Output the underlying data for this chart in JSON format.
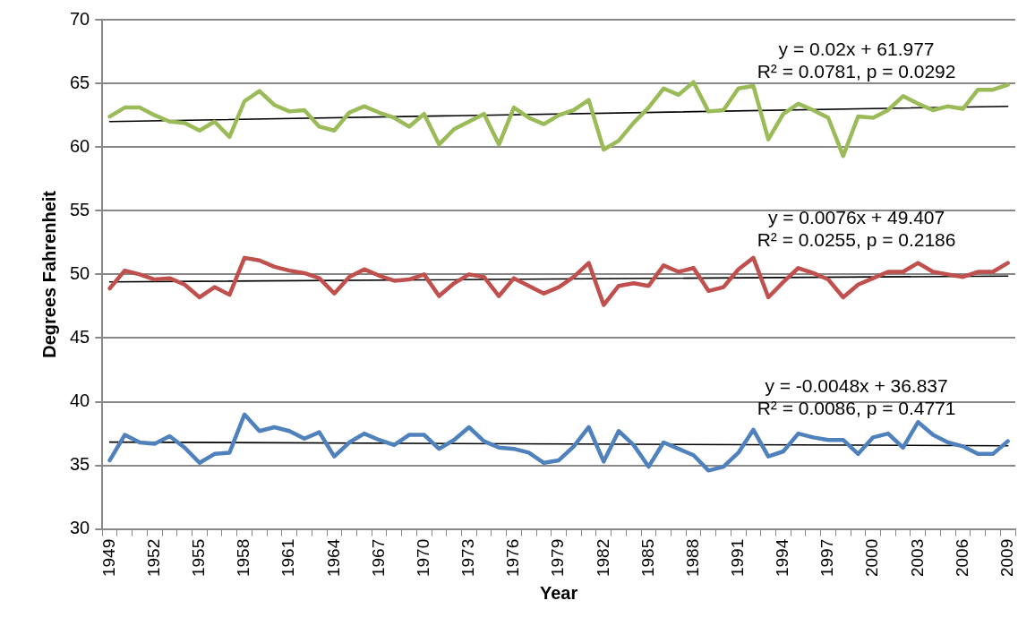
{
  "chart_data": {
    "type": "line",
    "xlabel": "Year",
    "ylabel": "Degrees Fahrenheit",
    "categories": [
      "1949",
      null,
      null,
      "1952",
      null,
      null,
      "1955",
      null,
      null,
      "1958",
      null,
      null,
      "1961",
      null,
      null,
      "1964",
      null,
      null,
      "1967",
      null,
      null,
      "1970",
      null,
      null,
      "1973",
      null,
      null,
      "1976",
      null,
      null,
      "1979",
      null,
      null,
      "1982",
      null,
      null,
      "1985",
      null,
      null,
      "1988",
      null,
      null,
      "1991",
      null,
      null,
      "1994",
      null,
      null,
      "1997",
      null,
      null,
      "2000",
      null,
      null,
      "2003",
      null,
      null,
      "2006",
      null,
      null,
      "2009"
    ],
    "series": [
      {
        "color": "#9bbb59",
        "values": [
          62.4,
          63.1,
          63.1,
          62.5,
          62.0,
          61.9,
          61.3,
          62.0,
          60.8,
          63.6,
          64.4,
          63.3,
          62.8,
          62.9,
          61.6,
          61.3,
          62.7,
          63.2,
          62.7,
          62.3,
          61.6,
          62.6,
          60.2,
          61.4,
          62.0,
          62.6,
          60.2,
          63.1,
          62.3,
          61.8,
          62.5,
          62.9,
          63.7,
          59.8,
          60.5,
          61.9,
          63.1,
          64.6,
          64.1,
          65.1,
          62.8,
          62.9,
          64.6,
          64.8,
          60.6,
          62.6,
          63.4,
          62.9,
          62.3,
          59.3,
          62.4,
          62.3,
          62.9,
          64.0,
          63.4,
          62.9,
          63.2,
          63.0,
          64.5,
          64.5,
          64.9
        ]
      },
      {
        "color": "#c0504d",
        "values": [
          48.9,
          50.3,
          50.0,
          49.6,
          49.7,
          49.2,
          48.2,
          49.0,
          48.4,
          51.3,
          51.1,
          50.6,
          50.3,
          50.1,
          49.7,
          48.5,
          49.8,
          50.4,
          49.9,
          49.5,
          49.6,
          50.0,
          48.3,
          49.3,
          50.0,
          49.8,
          48.3,
          49.7,
          49.1,
          48.5,
          49.0,
          49.8,
          50.9,
          47.6,
          49.1,
          49.3,
          49.1,
          50.7,
          50.2,
          50.5,
          48.7,
          49.0,
          50.4,
          51.3,
          48.2,
          49.4,
          50.5,
          50.1,
          49.6,
          48.2,
          49.2,
          49.7,
          50.2,
          50.2,
          50.9,
          50.2,
          50.0,
          49.8,
          50.2,
          50.2,
          50.9
        ]
      },
      {
        "color": "#4f81bd",
        "values": [
          35.4,
          37.4,
          36.8,
          36.7,
          37.3,
          36.4,
          35.2,
          35.9,
          36.0,
          39.0,
          37.7,
          38.0,
          37.7,
          37.1,
          37.6,
          35.7,
          36.8,
          37.5,
          37.0,
          36.6,
          37.4,
          37.4,
          36.3,
          37.0,
          38.0,
          36.9,
          36.4,
          36.3,
          36.0,
          35.2,
          35.4,
          36.5,
          38.0,
          35.3,
          37.7,
          36.6,
          34.9,
          36.8,
          36.3,
          35.8,
          34.6,
          34.9,
          36.0,
          37.8,
          35.7,
          36.1,
          37.5,
          37.2,
          37.0,
          37.0,
          35.9,
          37.2,
          37.5,
          36.4,
          38.4,
          37.4,
          36.8,
          36.5,
          35.9,
          35.9,
          36.9
        ]
      },
      {
        "type": "line",
        "color": "#000000",
        "values": [
          62.0,
          null,
          null,
          null,
          null,
          null,
          null,
          null,
          null,
          null,
          null,
          null,
          null,
          null,
          null,
          null,
          null,
          null,
          null,
          null,
          null,
          null,
          null,
          null,
          null,
          null,
          null,
          null,
          null,
          null,
          null,
          null,
          null,
          null,
          null,
          null,
          null,
          null,
          null,
          null,
          null,
          null,
          null,
          null,
          null,
          null,
          null,
          null,
          null,
          null,
          null,
          null,
          null,
          null,
          null,
          null,
          null,
          null,
          null,
          null,
          63.2
        ]
      },
      {
        "type": "line",
        "color": "#000000",
        "values": [
          49.41,
          null,
          null,
          null,
          null,
          null,
          null,
          null,
          null,
          null,
          null,
          null,
          null,
          null,
          null,
          null,
          null,
          null,
          null,
          null,
          null,
          null,
          null,
          null,
          null,
          null,
          null,
          null,
          null,
          null,
          null,
          null,
          null,
          null,
          null,
          null,
          null,
          null,
          null,
          null,
          null,
          null,
          null,
          null,
          null,
          null,
          null,
          null,
          null,
          null,
          null,
          null,
          null,
          null,
          null,
          null,
          null,
          null,
          null,
          null,
          49.87
        ]
      },
      {
        "type": "line",
        "color": "#000000",
        "values": [
          36.83,
          null,
          null,
          null,
          null,
          null,
          null,
          null,
          null,
          null,
          null,
          null,
          null,
          null,
          null,
          null,
          null,
          null,
          null,
          null,
          null,
          null,
          null,
          null,
          null,
          null,
          null,
          null,
          null,
          null,
          null,
          null,
          null,
          null,
          null,
          null,
          null,
          null,
          null,
          null,
          null,
          null,
          null,
          null,
          null,
          null,
          null,
          null,
          null,
          null,
          null,
          null,
          null,
          null,
          null,
          null,
          null,
          null,
          null,
          null,
          36.54
        ]
      }
    ],
    "ylim": [
      30,
      70
    ],
    "yticks": [
      30,
      35,
      40,
      45,
      50,
      55,
      60,
      65,
      70
    ],
    "grid": "y",
    "legend": false,
    "marker": "none",
    "line_style": "solid",
    "annotations": [
      "y = 0.02x + 61.977",
      "R² = 0.0781, p = 0.0292",
      "y = 0.0076x + 49.407",
      "R² = 0.0255, p = 0.2186",
      "y = -0.0048x + 36.837",
      "R² = 0.0086, p = 0.4771"
    ]
  }
}
